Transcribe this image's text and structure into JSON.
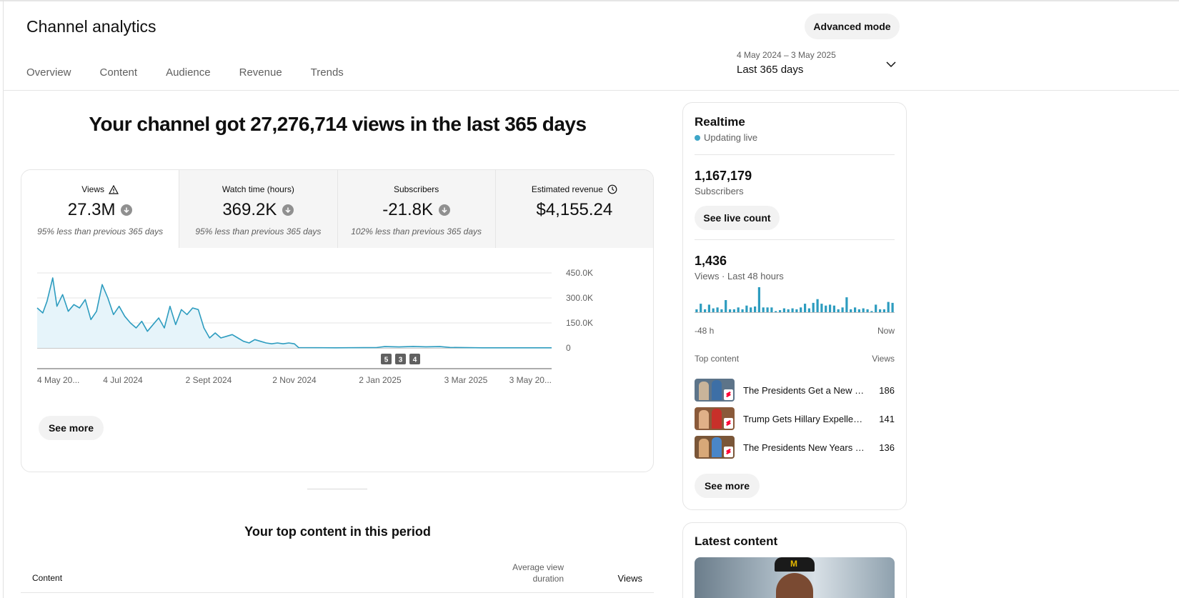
{
  "header": {
    "title": "Channel analytics",
    "advanced_mode_label": "Advanced mode",
    "tabs": [
      {
        "label": "Overview",
        "active": true
      },
      {
        "label": "Content",
        "active": false
      },
      {
        "label": "Audience",
        "active": false
      },
      {
        "label": "Revenue",
        "active": false
      },
      {
        "label": "Trends",
        "active": false
      }
    ],
    "date_range": {
      "dates": "4 May 2024 – 3 May 2025",
      "label": "Last 365 days"
    }
  },
  "overview": {
    "headline": "Your channel got 27,276,714 views in the last 365 days",
    "metrics": [
      {
        "label": "Views",
        "value": "27.3M",
        "note": "95% less than previous 365 days",
        "icon": "warning-icon",
        "trend": "down"
      },
      {
        "label": "Watch time (hours)",
        "value": "369.2K",
        "note": "95% less than previous 365 days",
        "trend": "down"
      },
      {
        "label": "Subscribers",
        "value": "-21.8K",
        "note": "102% less than previous 365 days",
        "trend": "down"
      },
      {
        "label": "Estimated revenue",
        "value": "$4,155.24",
        "note": "",
        "icon": "clock-icon"
      }
    ],
    "see_more_label": "See more"
  },
  "chart_data": {
    "type": "area",
    "title": "",
    "xlabel": "",
    "ylabel": "",
    "x_tick_labels": [
      "4 May 20...",
      "4 Jul 2024",
      "2 Sept 2024",
      "2 Nov 2024",
      "2 Jan 2025",
      "3 Mar 2025",
      "3 May 20..."
    ],
    "y_tick_labels": [
      "450.0K",
      "300.0K",
      "150.0K",
      "0"
    ],
    "ylim": [
      0,
      450000
    ],
    "grid": true,
    "color": "#2d9cbf",
    "fill_color": "#e6f4fa",
    "x_range": [
      "2024-05-04",
      "2025-05-03"
    ],
    "series": [
      {
        "points": [
          [
            "2024-05-04",
            240000
          ],
          [
            "2024-05-08",
            210000
          ],
          [
            "2024-05-11",
            280000
          ],
          [
            "2024-05-15",
            420000
          ],
          [
            "2024-05-18",
            250000
          ],
          [
            "2024-05-22",
            320000
          ],
          [
            "2024-05-26",
            220000
          ],
          [
            "2024-05-30",
            260000
          ],
          [
            "2024-06-03",
            240000
          ],
          [
            "2024-06-07",
            290000
          ],
          [
            "2024-06-11",
            170000
          ],
          [
            "2024-06-15",
            220000
          ],
          [
            "2024-06-19",
            380000
          ],
          [
            "2024-06-23",
            300000
          ],
          [
            "2024-06-27",
            200000
          ],
          [
            "2024-07-01",
            250000
          ],
          [
            "2024-07-05",
            190000
          ],
          [
            "2024-07-09",
            150000
          ],
          [
            "2024-07-13",
            120000
          ],
          [
            "2024-07-17",
            160000
          ],
          [
            "2024-07-21",
            100000
          ],
          [
            "2024-07-25",
            140000
          ],
          [
            "2024-07-29",
            180000
          ],
          [
            "2024-08-02",
            120000
          ],
          [
            "2024-08-06",
            250000
          ],
          [
            "2024-08-10",
            140000
          ],
          [
            "2024-08-14",
            230000
          ],
          [
            "2024-08-18",
            200000
          ],
          [
            "2024-08-22",
            240000
          ],
          [
            "2024-08-26",
            230000
          ],
          [
            "2024-08-30",
            120000
          ],
          [
            "2024-09-03",
            60000
          ],
          [
            "2024-09-07",
            90000
          ],
          [
            "2024-09-11",
            60000
          ],
          [
            "2024-09-15",
            70000
          ],
          [
            "2024-09-19",
            80000
          ],
          [
            "2024-09-23",
            60000
          ],
          [
            "2024-09-27",
            40000
          ],
          [
            "2024-10-01",
            30000
          ],
          [
            "2024-10-05",
            50000
          ],
          [
            "2024-10-09",
            40000
          ],
          [
            "2024-10-13",
            30000
          ],
          [
            "2024-10-17",
            25000
          ],
          [
            "2024-10-21",
            30000
          ],
          [
            "2024-10-25",
            25000
          ],
          [
            "2024-10-29",
            30000
          ],
          [
            "2024-11-02",
            25000
          ],
          [
            "2024-11-05",
            2000
          ],
          [
            "2024-12-01",
            1000
          ],
          [
            "2024-12-30",
            2000
          ],
          [
            "2025-01-05",
            8000
          ],
          [
            "2025-01-15",
            6000
          ],
          [
            "2025-01-25",
            9000
          ],
          [
            "2025-02-03",
            7000
          ],
          [
            "2025-02-13",
            8000
          ],
          [
            "2025-02-20",
            3000
          ],
          [
            "2025-03-15",
            1000
          ],
          [
            "2025-04-10",
            1000
          ],
          [
            "2025-05-03",
            1000
          ]
        ]
      }
    ],
    "annotations": [
      "5",
      "3",
      "4"
    ]
  },
  "realtime": {
    "title": "Realtime",
    "status": "Updating live",
    "subscribers_value": "1,167,179",
    "subscribers_label": "Subscribers",
    "see_live_count_label": "See live count",
    "views_value": "1,436",
    "views_label": "Views · Last 48 hours",
    "mini_chart": {
      "type": "bar",
      "color": "#2d9cbf",
      "values": [
        4,
        10,
        4,
        9,
        5,
        6,
        4,
        14,
        4,
        4,
        6,
        4,
        8,
        6,
        7,
        28,
        6,
        6,
        6,
        2,
        3,
        5,
        4,
        5,
        4,
        6,
        10,
        5,
        11,
        15,
        10,
        8,
        9,
        8,
        4,
        6,
        17,
        4,
        6,
        4,
        5,
        4,
        2,
        9,
        4,
        4,
        12,
        11
      ],
      "x_start_label": "-48 h",
      "x_end_label": "Now"
    },
    "top_content_label": "Top content",
    "top_content_views_label": "Views",
    "top_content": [
      {
        "title": "The Presidents Get a New …",
        "views": "186",
        "thumb_color": "#5d7489"
      },
      {
        "title": "Trump Gets Hillary Expelle…",
        "views": "141",
        "thumb_color": "#8a5a3a"
      },
      {
        "title": "The Presidents New Years …",
        "views": "136",
        "thumb_color": "#7a5638"
      }
    ],
    "see_more_label": "See more"
  },
  "top_content_section": {
    "title": "Your top content in this period",
    "col_content": "Content",
    "col_avg_duration": "Average view duration",
    "col_views": "Views"
  },
  "latest": {
    "title": "Latest content"
  }
}
